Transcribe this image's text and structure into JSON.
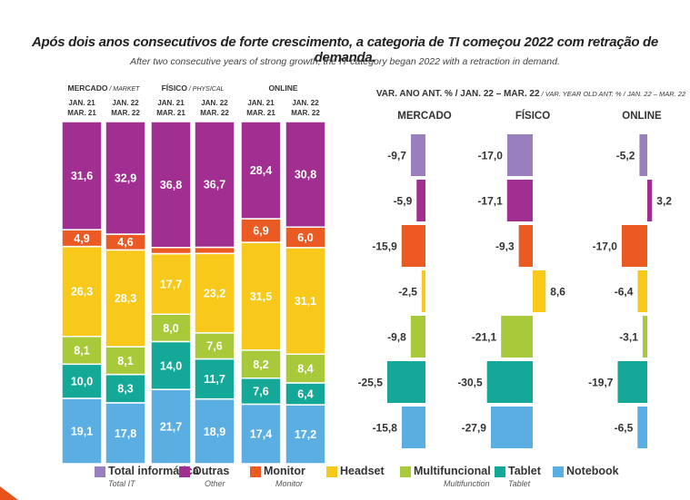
{
  "title": "Após dois anos consecutivos de forte crescimento, a categoria de TI começou 2022 com retração de demanda.",
  "subtitle": "After two consecutive years of strong growth, the IT category began 2022 with a retraction in demand.",
  "colors": {
    "total": "#9a7fbf",
    "outras": "#a12e91",
    "monitor": "#ec5a24",
    "headset": "#f8c81a",
    "multifuncional": "#a8c93a",
    "tablet": "#14a898",
    "notebook": "#5aaee2"
  },
  "chart_data": [
    {
      "type": "bar",
      "stacked": true,
      "percent": true,
      "groups": [
        {
          "label": "MERCADO",
          "sublabel": "MARKET"
        },
        {
          "label": "FÍSICO",
          "sublabel": "PHYSICAL"
        },
        {
          "label": "ONLINE",
          "sublabel": ""
        }
      ],
      "periods": [
        "JAN. 21 MAR. 21",
        "JAN. 22 MAR. 22"
      ],
      "period_labels": [
        [
          "JAN. 21",
          "MAR. 21"
        ],
        [
          "JAN. 22",
          "MAR. 22"
        ]
      ],
      "categories": [
        "MERCADO JAN.21-MAR.21",
        "MERCADO JAN.22-MAR.22",
        "FÍSICO JAN.21-MAR.21",
        "FÍSICO JAN.22-MAR.22",
        "ONLINE JAN.21-MAR.21",
        "ONLINE JAN.22-MAR.22"
      ],
      "series": [
        {
          "name": "Notebook",
          "key": "notebook",
          "values": [
            19.1,
            17.8,
            21.7,
            18.9,
            17.4,
            17.2
          ],
          "labels": [
            "19,1",
            "17,8",
            "21,7",
            "18,9",
            "17,4",
            "17,2"
          ]
        },
        {
          "name": "Tablet",
          "key": "tablet",
          "values": [
            10.0,
            8.3,
            14.0,
            11.7,
            7.6,
            6.4
          ],
          "labels": [
            "10,0",
            "8,3",
            "14,0",
            "11,7",
            "7,6",
            "6,4"
          ]
        },
        {
          "name": "Multifuncional",
          "key": "multifuncional",
          "values": [
            8.1,
            8.1,
            8.0,
            7.6,
            8.2,
            8.4
          ],
          "labels": [
            "8,1",
            "8,1",
            "8,0",
            "7,6",
            "8,2",
            "8,4"
          ]
        },
        {
          "name": "Headset",
          "key": "headset",
          "values": [
            26.3,
            28.3,
            17.7,
            23.2,
            31.5,
            31.1
          ],
          "labels": [
            "26,3",
            "28,3",
            "17,7",
            "23,2",
            "31,5",
            "31,1"
          ]
        },
        {
          "name": "Monitor",
          "key": "monitor",
          "values": [
            4.9,
            4.6,
            1.8,
            1.8,
            6.9,
            6.0
          ],
          "labels": [
            "4,9",
            "4,6",
            "",
            "",
            "6,9",
            "6,0"
          ]
        },
        {
          "name": "Outras",
          "key": "outras",
          "values": [
            31.6,
            32.9,
            36.8,
            36.7,
            28.4,
            30.8
          ],
          "labels": [
            "31,6",
            "32,9",
            "36,8",
            "36,7",
            "28,4",
            "30,8"
          ]
        }
      ]
    },
    {
      "type": "bar",
      "orientation": "horizontal",
      "title": "VAR. ANO ANT. % / JAN. 22 – MAR. 22",
      "title_sub": "/ VAR. YEAR OLD ANT. % / JAN. 22 – MAR. 22",
      "categories": [
        "Total informática",
        "Outras",
        "Monitor",
        "Headset",
        "Multifuncional",
        "Tablet",
        "Notebook"
      ],
      "category_keys": [
        "total",
        "outras",
        "monitor",
        "headset",
        "multifuncional",
        "tablet",
        "notebook"
      ],
      "series": [
        {
          "name": "MERCADO",
          "values": [
            -9.7,
            -5.9,
            -15.9,
            -2.5,
            -9.8,
            -25.5,
            -15.8
          ],
          "labels": [
            "-9,7",
            "-5,9",
            "-15,9",
            "-2,5",
            "-9,8",
            "-25,5",
            "-15,8"
          ]
        },
        {
          "name": "FÍSICO",
          "values": [
            -17.0,
            -17.1,
            -9.3,
            8.6,
            -21.1,
            -30.5,
            -27.9
          ],
          "labels": [
            "-17,0",
            "-17,1",
            "-9,3",
            "8,6",
            "-21,1",
            "-30,5",
            "-27,9"
          ]
        },
        {
          "name": "ONLINE",
          "values": [
            -5.2,
            3.2,
            -17.0,
            -6.4,
            -3.1,
            -19.7,
            -6.5
          ],
          "labels": [
            "-5,2",
            "3,2",
            "-17,0",
            "-6,4",
            "-3,1",
            "-19,7",
            "-6,5"
          ]
        }
      ]
    }
  ],
  "legend": [
    {
      "key": "total",
      "label": "Total informática",
      "sub": "Total IT"
    },
    {
      "key": "outras",
      "label": "Outras",
      "sub": "Other"
    },
    {
      "key": "monitor",
      "label": "Monitor",
      "sub": "Monitor"
    },
    {
      "key": "headset",
      "label": "Headset",
      "sub": ""
    },
    {
      "key": "multifuncional",
      "label": "Multifuncional",
      "sub": "Multifunction"
    },
    {
      "key": "tablet",
      "label": "Tablet",
      "sub": "Tablet"
    },
    {
      "key": "notebook",
      "label": "Notebook",
      "sub": ""
    }
  ]
}
